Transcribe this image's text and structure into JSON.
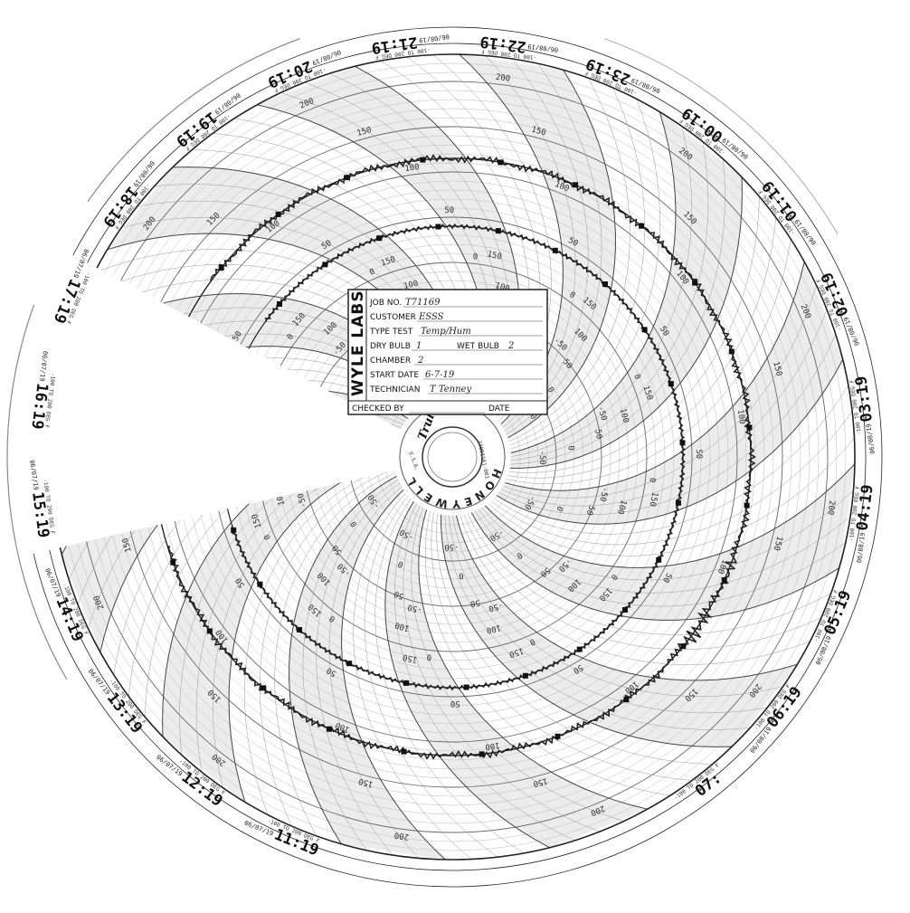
{
  "chart": {
    "hour_labels": [
      "11:19",
      "12:19",
      "13:19",
      "14:19",
      "15:19",
      "16:19",
      "17:19",
      "18:19",
      "19:19",
      "20:19",
      "21:19",
      "22:19",
      "23:19",
      "00:19",
      "01:19",
      "02:19",
      "03:19",
      "04:19",
      "05:19",
      "06:19",
      "07:"
    ],
    "date_labels": [
      "06/07/19",
      "06/07/19",
      "06/07/19",
      "06/07/19",
      "06/07/19",
      "06/07/19",
      "06/07/19",
      "06/08/19",
      "06/08/19",
      "06/08/19",
      "06/08/19",
      "06/08/19",
      "06/08/19",
      "06/08/19",
      "06/08/19",
      "06/08/19",
      "06/08/19",
      "06/08/19",
      "06/08/19",
      "06/08/19"
    ],
    "range_label": "-100 TO 200 DEG F",
    "scale_outer_labels": [
      "200",
      "150",
      "100",
      "50",
      "0",
      "-50"
    ],
    "scale_inner_labels": [
      "150",
      "100",
      "50",
      "0",
      "-50"
    ],
    "label_temp": "TEMP",
    "label_rh": "RH",
    "label_low_range": "0 TO 100",
    "label_degf_short": "DEG F"
  },
  "form": {
    "brand": "WYLE LABS",
    "job_no_label": "JOB NO.",
    "job_no_value": "T71169",
    "customer_label": "CUSTOMER",
    "customer_value": "ESSS",
    "type_test_label": "TYPE TEST",
    "type_test_value": "Temp/Hum",
    "dry_bulb_label": "DRY BULB",
    "dry_bulb_value": "1",
    "wet_bulb_label": "WET BULB",
    "wet_bulb_value": "2",
    "chamber_label": "CHAMBER",
    "chamber_value": "2",
    "start_date_label": "START DATE",
    "start_date_value": "6-7-19",
    "technician_label": "TECHNICIAN",
    "technician_value": "T Tenney",
    "checked_by_label": "CHECKED BY",
    "date_label": "DATE"
  },
  "hub": {
    "brand_ring": "HONEYWELL",
    "script_logo": "Trulime",
    "serial": "24001161-001",
    "origin": "U.S.A."
  }
}
